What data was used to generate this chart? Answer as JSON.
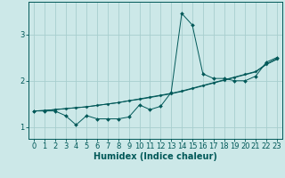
{
  "xlabel": "Humidex (Indice chaleur)",
  "background_color": "#cce8e8",
  "line_color": "#005858",
  "x_values": [
    0,
    1,
    2,
    3,
    4,
    5,
    6,
    7,
    8,
    9,
    10,
    11,
    12,
    13,
    14,
    15,
    16,
    17,
    18,
    19,
    20,
    21,
    22,
    23
  ],
  "line1_y": [
    1.35,
    1.35,
    1.35,
    1.25,
    1.05,
    1.25,
    1.18,
    1.18,
    1.18,
    1.22,
    1.48,
    1.38,
    1.45,
    1.75,
    3.45,
    3.2,
    2.15,
    2.05,
    2.05,
    2.0,
    2.0,
    2.1,
    2.4,
    2.5
  ],
  "line2_y": [
    1.35,
    1.36,
    1.38,
    1.4,
    1.42,
    1.44,
    1.47,
    1.5,
    1.53,
    1.57,
    1.61,
    1.65,
    1.69,
    1.73,
    1.78,
    1.84,
    1.9,
    1.96,
    2.02,
    2.08,
    2.14,
    2.2,
    2.36,
    2.48
  ],
  "line3_y": [
    1.35,
    1.36,
    1.38,
    1.4,
    1.42,
    1.44,
    1.47,
    1.5,
    1.53,
    1.57,
    1.6,
    1.64,
    1.68,
    1.72,
    1.77,
    1.83,
    1.89,
    1.95,
    2.01,
    2.07,
    2.13,
    2.19,
    2.35,
    2.46
  ],
  "ylim": [
    0.75,
    3.7
  ],
  "xlim": [
    -0.5,
    23.5
  ],
  "yticks": [
    1,
    2,
    3
  ],
  "xticks": [
    0,
    1,
    2,
    3,
    4,
    5,
    6,
    7,
    8,
    9,
    10,
    11,
    12,
    13,
    14,
    15,
    16,
    17,
    18,
    19,
    20,
    21,
    22,
    23
  ],
  "grid_color": "#a8cece",
  "xlabel_fontsize": 7,
  "tick_fontsize": 6,
  "marker_size_line1": 2.0,
  "marker_size_line2": 1.6,
  "linewidth": 0.7
}
